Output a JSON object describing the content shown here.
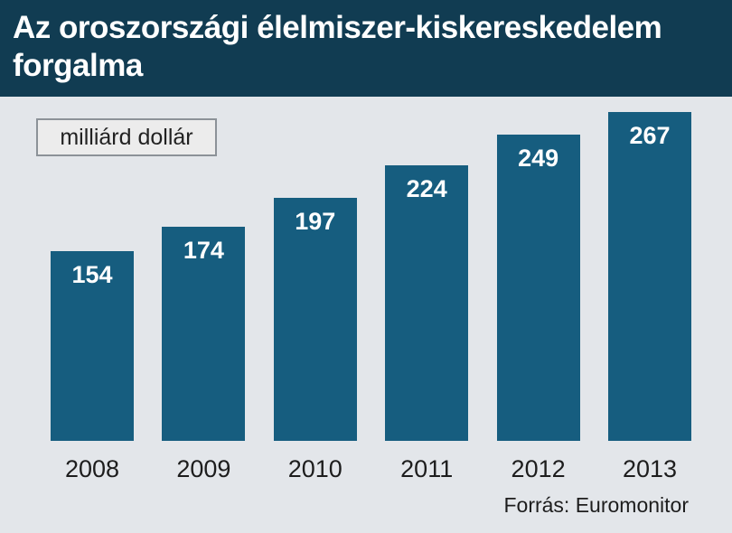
{
  "chart_data": {
    "type": "bar",
    "title": "Az oroszországi élelmiszer-kiskereskedelem forgalma",
    "unit_label": "milliárd dollár",
    "categories": [
      "2008",
      "2009",
      "2010",
      "2011",
      "2012",
      "2013"
    ],
    "values": [
      154,
      174,
      197,
      224,
      249,
      267
    ],
    "ylim": [
      0,
      267
    ],
    "xlabel": "",
    "ylabel": "",
    "grid": false,
    "source": "Forrás: Euromonitor"
  },
  "colors": {
    "header_bg": "#113c52",
    "bar": "#165d7f",
    "background": "#e3e6ea"
  }
}
